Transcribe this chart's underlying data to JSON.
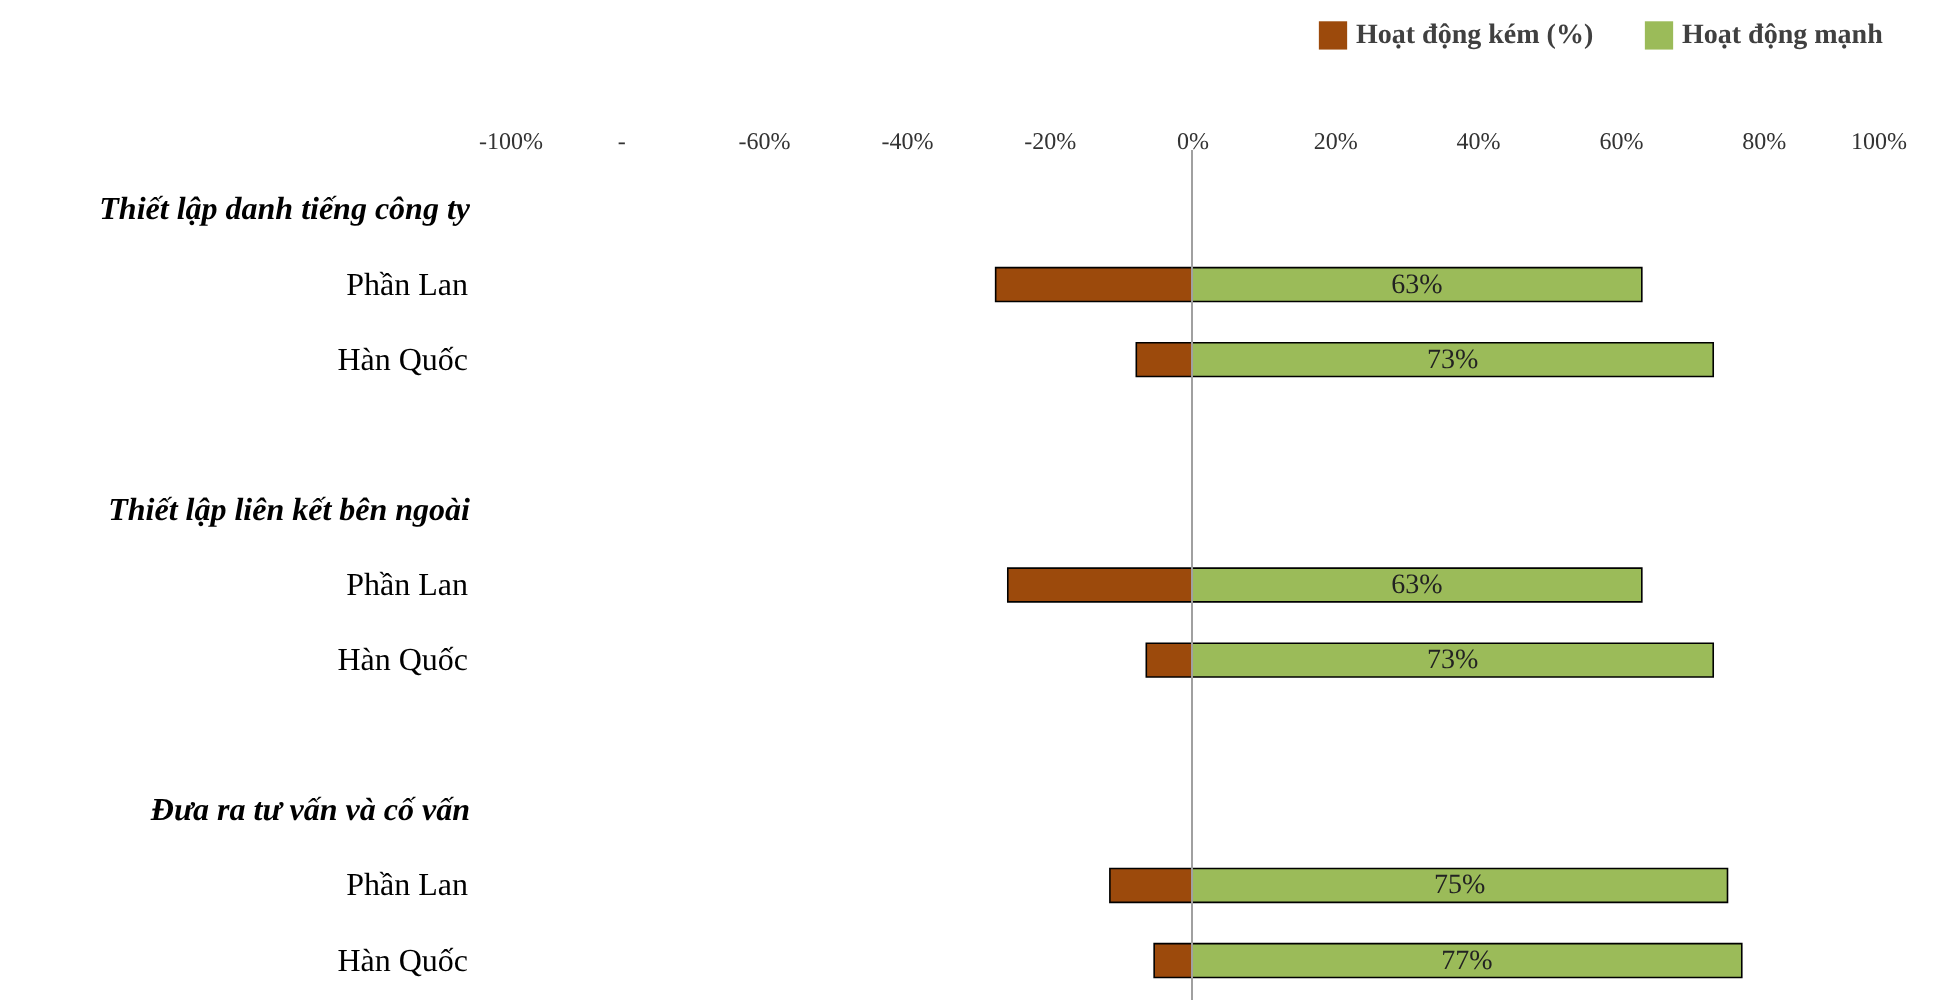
{
  "chart_data": {
    "type": "bar",
    "orientation": "horizontal",
    "stacked": true,
    "categories": [
      "Thiết lập danh tiếng công ty",
      "Phần Lan",
      "Hàn Quốc",
      null,
      "Thiết lập liên kết bên ngoài",
      "Phần Lan",
      "Hàn Quốc",
      null,
      "Đưa ra tư vấn và cố vấn",
      "Phần Lan",
      "Hàn Quốc"
    ],
    "series": [
      {
        "name": "Hoạt động kém (%)",
        "color": "#9c4a0c",
        "values": [
          null,
          -27.5,
          -7.8,
          null,
          null,
          -25.8,
          -6.4,
          null,
          null,
          -11.5,
          -5.3
        ]
      },
      {
        "name": "Hoạt động mạnh",
        "color": "#9bbb59",
        "values": [
          null,
          63,
          73,
          null,
          null,
          63,
          73,
          null,
          null,
          75,
          77
        ],
        "value_labels": [
          null,
          "63%",
          "73%",
          null,
          null,
          "63%",
          "73%",
          null,
          null,
          "75%",
          "77%"
        ]
      }
    ],
    "xlim": [
      -100,
      100
    ],
    "xticks": [
      {
        "value": -100,
        "label": "-100%"
      },
      {
        "value": -80,
        "label": "-"
      },
      {
        "value": -60,
        "label": "-60%"
      },
      {
        "value": -40,
        "label": "-40%"
      },
      {
        "value": -20,
        "label": "-20%"
      },
      {
        "value": 0,
        "label": "0%"
      },
      {
        "value": 20,
        "label": "20%"
      },
      {
        "value": 40,
        "label": "40%"
      },
      {
        "value": 60,
        "label": "60%"
      },
      {
        "value": 80,
        "label": "80%"
      },
      {
        "value": 100,
        "label": "100%"
      }
    ],
    "ref_lines": [
      {
        "axis": "x",
        "value": 0,
        "color": "#a0a0a0"
      }
    ],
    "grid": false,
    "legend": "top right"
  }
}
